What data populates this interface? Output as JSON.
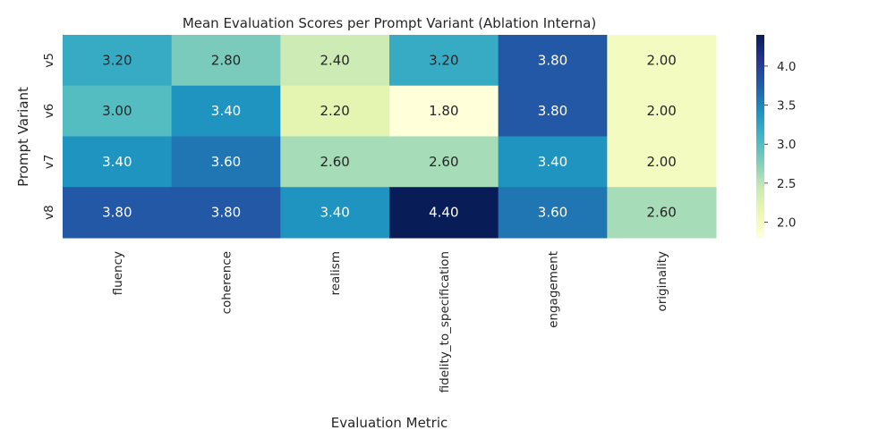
{
  "chart_data": {
    "type": "heatmap",
    "title": "Mean Evaluation Scores per Prompt Variant (Ablation Interna)",
    "xlabel": "Evaluation Metric",
    "ylabel": "Prompt Variant",
    "columns": [
      "fluency",
      "coherence",
      "realism",
      "fidelity_to_specification",
      "engagement",
      "originality"
    ],
    "rows": [
      "v5",
      "v6",
      "v7",
      "v8"
    ],
    "values": [
      [
        3.2,
        2.8,
        2.4,
        3.2,
        3.8,
        2.0
      ],
      [
        3.0,
        3.4,
        2.2,
        1.8,
        3.8,
        2.0
      ],
      [
        3.4,
        3.6,
        2.6,
        2.6,
        3.4,
        2.0
      ],
      [
        3.8,
        3.8,
        3.4,
        4.4,
        3.6,
        2.6
      ]
    ],
    "annotation_format": "0.00",
    "colormap": "YlGnBu",
    "vmin": 1.8,
    "vmax": 4.4,
    "colorbar_ticks": [
      2.0,
      2.5,
      3.0,
      3.5,
      4.0
    ],
    "grid": false,
    "legend": "colorbar-right"
  }
}
